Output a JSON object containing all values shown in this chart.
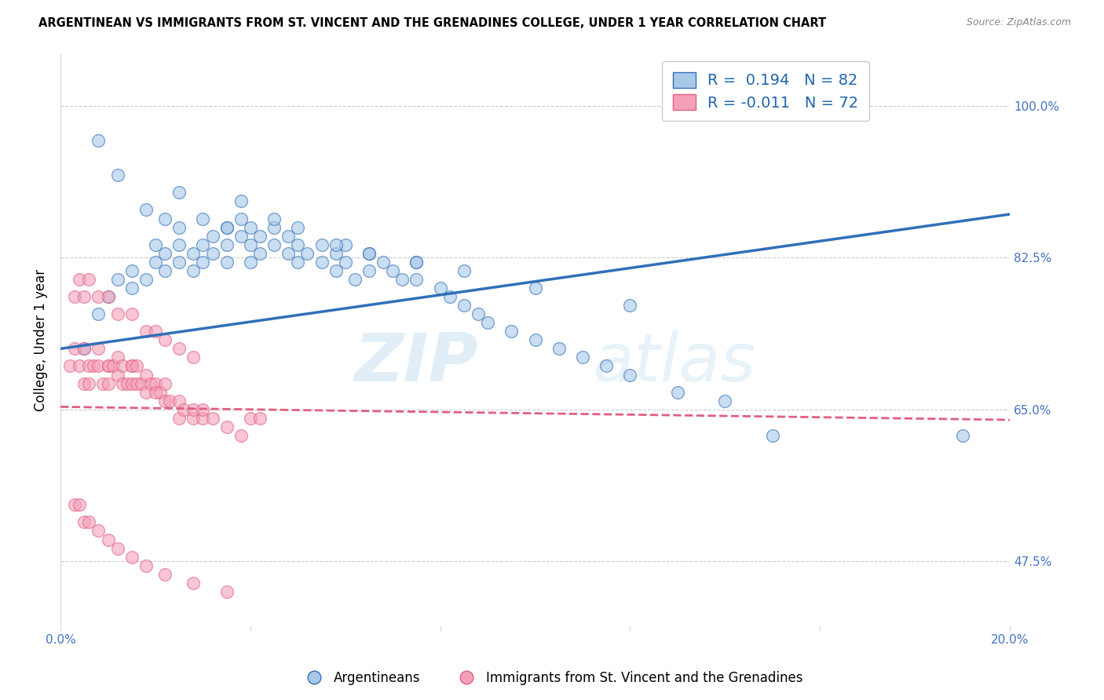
{
  "title": "ARGENTINEAN VS IMMIGRANTS FROM ST. VINCENT AND THE GRENADINES COLLEGE, UNDER 1 YEAR CORRELATION CHART",
  "source": "Source: ZipAtlas.com",
  "ylabel_label": "College, Under 1 year",
  "legend_label1": "Argentineans",
  "legend_label2": "Immigrants from St. Vincent and the Grenadines",
  "r1": 0.194,
  "n1": 82,
  "r2": -0.011,
  "n2": 72,
  "color_blue": "#a8c8e8",
  "color_pink": "#f4a0b8",
  "color_blue_line": "#3070b8",
  "color_pink_line": "#e06080",
  "watermark_zip": "ZIP",
  "watermark_atlas": "atlas",
  "xmin": 0.0,
  "xmax": 0.2,
  "ymin": 0.4,
  "ymax": 1.06,
  "ytick_vals": [
    0.475,
    0.65,
    0.825,
    1.0
  ],
  "ytick_labels": [
    "47.5%",
    "65.0%",
    "82.5%",
    "100.0%"
  ],
  "xtick_vals": [
    0.0,
    0.04,
    0.08,
    0.12,
    0.16,
    0.2
  ],
  "xtick_labels": [
    "0.0%",
    "",
    "",
    "",
    "",
    "20.0%"
  ],
  "blue_x": [
    0.005,
    0.008,
    0.01,
    0.012,
    0.015,
    0.015,
    0.018,
    0.02,
    0.02,
    0.022,
    0.022,
    0.025,
    0.025,
    0.025,
    0.028,
    0.028,
    0.03,
    0.03,
    0.032,
    0.032,
    0.035,
    0.035,
    0.035,
    0.038,
    0.038,
    0.04,
    0.04,
    0.04,
    0.042,
    0.042,
    0.045,
    0.045,
    0.048,
    0.048,
    0.05,
    0.05,
    0.052,
    0.055,
    0.055,
    0.058,
    0.058,
    0.06,
    0.06,
    0.062,
    0.065,
    0.065,
    0.068,
    0.07,
    0.072,
    0.075,
    0.075,
    0.08,
    0.082,
    0.085,
    0.088,
    0.09,
    0.095,
    0.1,
    0.105,
    0.11,
    0.115,
    0.12,
    0.13,
    0.14,
    0.15,
    0.008,
    0.012,
    0.018,
    0.022,
    0.025,
    0.03,
    0.035,
    0.038,
    0.045,
    0.05,
    0.058,
    0.065,
    0.075,
    0.085,
    0.1,
    0.12,
    0.19
  ],
  "blue_y": [
    0.72,
    0.76,
    0.78,
    0.8,
    0.79,
    0.81,
    0.8,
    0.82,
    0.84,
    0.81,
    0.83,
    0.82,
    0.84,
    0.86,
    0.83,
    0.81,
    0.84,
    0.82,
    0.85,
    0.83,
    0.86,
    0.84,
    0.82,
    0.87,
    0.85,
    0.86,
    0.84,
    0.82,
    0.85,
    0.83,
    0.86,
    0.84,
    0.85,
    0.83,
    0.84,
    0.82,
    0.83,
    0.84,
    0.82,
    0.83,
    0.81,
    0.84,
    0.82,
    0.8,
    0.83,
    0.81,
    0.82,
    0.81,
    0.8,
    0.82,
    0.8,
    0.79,
    0.78,
    0.77,
    0.76,
    0.75,
    0.74,
    0.73,
    0.72,
    0.71,
    0.7,
    0.69,
    0.67,
    0.66,
    0.62,
    0.96,
    0.92,
    0.88,
    0.87,
    0.9,
    0.87,
    0.86,
    0.89,
    0.87,
    0.86,
    0.84,
    0.83,
    0.82,
    0.81,
    0.79,
    0.77,
    0.62
  ],
  "pink_x": [
    0.002,
    0.003,
    0.004,
    0.005,
    0.005,
    0.006,
    0.006,
    0.007,
    0.008,
    0.008,
    0.009,
    0.01,
    0.01,
    0.01,
    0.011,
    0.012,
    0.012,
    0.013,
    0.013,
    0.014,
    0.015,
    0.015,
    0.015,
    0.016,
    0.016,
    0.017,
    0.018,
    0.018,
    0.019,
    0.02,
    0.02,
    0.021,
    0.022,
    0.022,
    0.023,
    0.025,
    0.025,
    0.026,
    0.028,
    0.028,
    0.03,
    0.03,
    0.032,
    0.035,
    0.038,
    0.04,
    0.042,
    0.003,
    0.004,
    0.005,
    0.006,
    0.008,
    0.01,
    0.012,
    0.015,
    0.018,
    0.02,
    0.022,
    0.025,
    0.028,
    0.003,
    0.004,
    0.005,
    0.006,
    0.008,
    0.01,
    0.012,
    0.015,
    0.018,
    0.022,
    0.028,
    0.035
  ],
  "pink_y": [
    0.7,
    0.72,
    0.7,
    0.72,
    0.68,
    0.7,
    0.68,
    0.7,
    0.7,
    0.72,
    0.68,
    0.7,
    0.68,
    0.7,
    0.7,
    0.69,
    0.71,
    0.68,
    0.7,
    0.68,
    0.7,
    0.68,
    0.7,
    0.68,
    0.7,
    0.68,
    0.69,
    0.67,
    0.68,
    0.68,
    0.67,
    0.67,
    0.66,
    0.68,
    0.66,
    0.66,
    0.64,
    0.65,
    0.64,
    0.65,
    0.64,
    0.65,
    0.64,
    0.63,
    0.62,
    0.64,
    0.64,
    0.78,
    0.8,
    0.78,
    0.8,
    0.78,
    0.78,
    0.76,
    0.76,
    0.74,
    0.74,
    0.73,
    0.72,
    0.71,
    0.54,
    0.54,
    0.52,
    0.52,
    0.51,
    0.5,
    0.49,
    0.48,
    0.47,
    0.46,
    0.45,
    0.44
  ]
}
